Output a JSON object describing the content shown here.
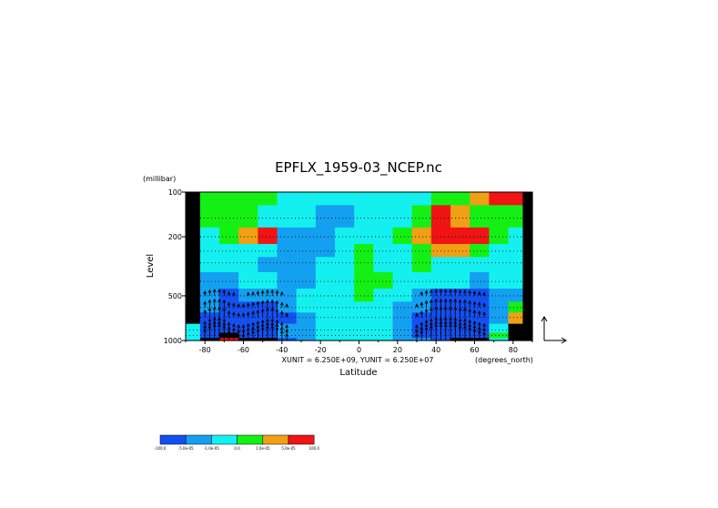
{
  "chart_data": {
    "type": "heatmap",
    "title": "EPFLX_1959-03_NCEP.nc",
    "xlabel": "Latitude",
    "x_unit_label": "(degrees_north)",
    "ylabel": "Level",
    "y_unit_label": "(millibar)",
    "x_ticks": [
      -80,
      -60,
      -40,
      -20,
      0,
      20,
      40,
      60,
      80
    ],
    "xlim": [
      -90,
      90
    ],
    "y_ticks": [
      100,
      200,
      500,
      1000
    ],
    "ylim": [
      1000,
      100
    ],
    "y_scale": "log",
    "vector_scale_text": "XUNIT = 6.250E+09, YUNIT = 6.250E+07",
    "grid": "dotted horizontal lines at pressure levels",
    "levels_mb": [
      100,
      150,
      200,
      250,
      300,
      400,
      500,
      600,
      700,
      850,
      925,
      1000
    ],
    "latitudes": [
      -87.5,
      -77.5,
      -67.5,
      -57.5,
      -47.5,
      -37.5,
      -27.5,
      -17.5,
      -7.5,
      2.5,
      12.5,
      22.5,
      32.5,
      42.5,
      52.5,
      62.5,
      72.5,
      82.5,
      87.5
    ],
    "class_grid": [
      [
        6,
        3,
        3,
        3,
        3,
        2,
        2,
        2,
        2,
        2,
        2,
        2,
        2,
        3,
        3,
        4,
        5,
        5,
        6
      ],
      [
        6,
        3,
        3,
        3,
        2,
        2,
        2,
        1,
        1,
        2,
        2,
        2,
        3,
        5,
        4,
        3,
        3,
        3,
        6
      ],
      [
        6,
        2,
        3,
        4,
        5,
        1,
        1,
        1,
        2,
        2,
        2,
        3,
        4,
        5,
        5,
        5,
        3,
        2,
        6
      ],
      [
        6,
        2,
        2,
        2,
        2,
        1,
        1,
        1,
        2,
        3,
        2,
        2,
        3,
        4,
        4,
        3,
        2,
        2,
        6
      ],
      [
        6,
        2,
        2,
        2,
        1,
        1,
        1,
        2,
        2,
        3,
        2,
        2,
        3,
        2,
        2,
        2,
        2,
        2,
        6
      ],
      [
        6,
        1,
        1,
        2,
        2,
        1,
        1,
        2,
        2,
        3,
        3,
        2,
        2,
        2,
        2,
        1,
        2,
        2,
        6
      ],
      [
        6,
        1,
        0,
        1,
        1,
        1,
        2,
        2,
        2,
        3,
        2,
        2,
        1,
        0,
        0,
        0,
        1,
        1,
        6
      ],
      [
        6,
        1,
        0,
        0,
        0,
        1,
        2,
        2,
        2,
        2,
        2,
        1,
        1,
        0,
        0,
        0,
        1,
        3,
        6
      ],
      [
        6,
        0,
        0,
        0,
        0,
        0,
        1,
        2,
        2,
        2,
        2,
        1,
        0,
        0,
        0,
        0,
        1,
        4,
        6
      ],
      [
        2,
        0,
        0,
        0,
        0,
        1,
        1,
        2,
        2,
        2,
        2,
        1,
        0,
        0,
        0,
        0,
        2,
        6,
        6
      ],
      [
        2,
        0,
        6,
        0,
        0,
        1,
        1,
        2,
        2,
        2,
        2,
        1,
        0,
        0,
        0,
        0,
        3,
        6,
        6
      ],
      [
        2,
        6,
        5,
        6,
        6,
        0,
        1,
        2,
        2,
        2,
        2,
        1,
        1,
        0,
        6,
        6,
        2,
        6,
        6
      ]
    ],
    "colorbar": {
      "colors": [
        "#1450f0",
        "#14a0f0",
        "#14f0f0",
        "#14f014",
        "#f0a014",
        "#f01414"
      ],
      "boundary_labels": [
        "-100.0",
        "-5.0e-05",
        "-1.0e-05",
        "0.0",
        "1.0e-05",
        "5.0e-05",
        "100.0"
      ]
    },
    "vectors": {
      "latitudes": [
        -80,
        -77.5,
        -75,
        -72.5,
        -70,
        -67.5,
        -65,
        -62.5,
        -60,
        -57.5,
        -55,
        -52.5,
        -50,
        -47.5,
        -45,
        -42.5,
        -40,
        -37.5,
        30,
        32.5,
        35,
        37.5,
        40,
        42.5,
        45,
        47.5,
        50,
        52.5,
        55,
        57.5,
        60,
        62.5,
        65
      ],
      "levels_mb": [
        1000,
        925,
        850,
        700,
        600,
        500
      ],
      "strength": [
        0.7,
        0.9,
        1,
        1,
        0.9,
        0.6,
        0.5,
        0.4,
        0.4,
        0.5,
        0.6,
        0.7,
        0.8,
        0.9,
        0.9,
        0.8,
        0.6,
        0.4,
        0.4,
        0.6,
        0.8,
        0.9,
        1,
        1,
        1,
        1,
        1,
        0.9,
        0.9,
        0.8,
        0.7,
        0.6,
        0.5
      ],
      "reference_arrow": true
    }
  }
}
